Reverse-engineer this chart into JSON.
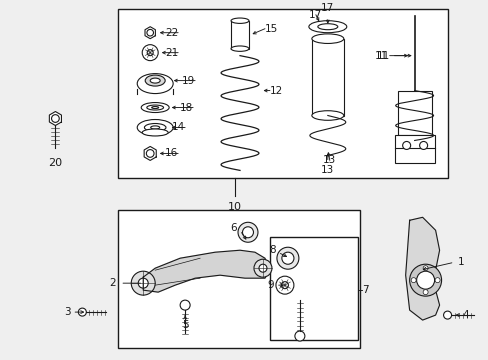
{
  "bg_color": "#efefef",
  "line_color": "#1a1a1a",
  "white": "#ffffff",
  "fig_width": 4.89,
  "fig_height": 3.6,
  "dpi": 100
}
